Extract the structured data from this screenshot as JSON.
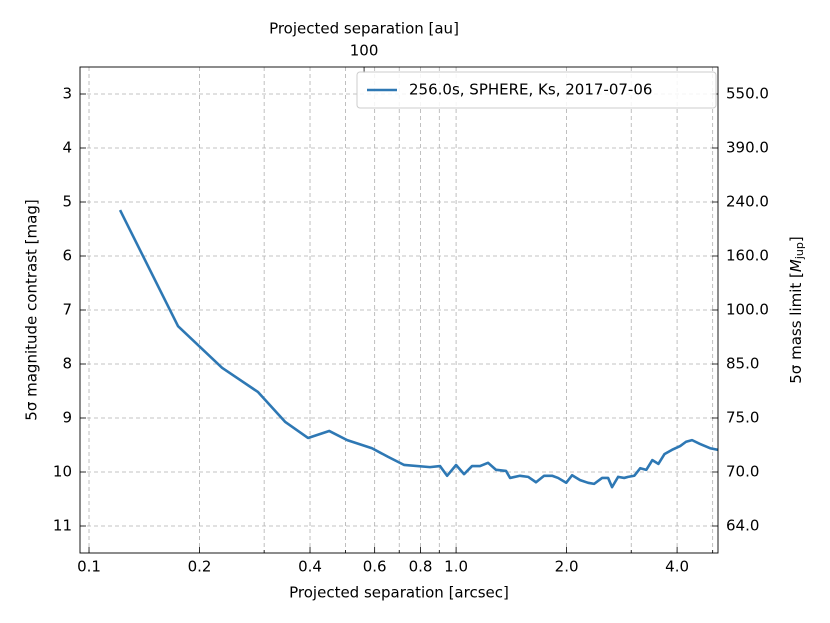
{
  "chart_data": {
    "type": "line",
    "xlabel": "Projected separation [arcsec]",
    "ylabel": "5σ magnitude contrast [mag]",
    "x2label": "Projected separation [au]",
    "y2label": {
      "prefix": "5σ mass limit [",
      "symbol": "M",
      "subscript": "jup",
      "suffix": "]"
    },
    "xscale": "log",
    "xlim": [
      0.0945,
      5.17
    ],
    "xticks": [
      0.1,
      0.2,
      0.4,
      0.6,
      0.8,
      {
        "value": 1,
        "label": "1.0"
      },
      {
        "value": 2,
        "label": "2.0"
      },
      {
        "value": 4,
        "label": "4.0"
      }
    ],
    "xgrid_minor": [
      0.3,
      0.5,
      0.7,
      0.9,
      3,
      5
    ],
    "x2lim": [
      16.83,
      920.8
    ],
    "x2ticks": [
      100
    ],
    "ylim": [
      11.5,
      2.5
    ],
    "yticks": [
      3,
      4,
      5,
      6,
      7,
      8,
      9,
      10,
      11
    ],
    "y2ticks": [
      {
        "value": 550,
        "label": "550.0"
      },
      {
        "value": 390,
        "label": "390.0"
      },
      {
        "value": 240,
        "label": "240.0"
      },
      {
        "value": 160,
        "label": "160.0"
      },
      {
        "value": 100,
        "label": "100.0"
      },
      {
        "value": 85,
        "label": "85.0"
      },
      {
        "value": 75,
        "label": "75.0"
      },
      {
        "value": 70,
        "label": "70.0"
      },
      {
        "value": 64,
        "label": "64.0"
      }
    ],
    "grid": true,
    "legend": "upper right",
    "series": [
      {
        "name": "256.0s, SPHERE, Ks, 2017-07-06",
        "color": "#2e78b4",
        "x": [
          0.1215,
          0.1748,
          0.2304,
          0.2888,
          0.342,
          0.395,
          0.451,
          0.505,
          0.59,
          0.653,
          0.722,
          0.849,
          0.904,
          0.945,
          1.0,
          1.051,
          1.105,
          1.162,
          1.222,
          1.285,
          1.368,
          1.403,
          1.493,
          1.571,
          1.651,
          1.737,
          1.826,
          1.896,
          1.995,
          2.07,
          2.177,
          2.289,
          2.377,
          2.499,
          2.595,
          2.66,
          2.763,
          2.87,
          2.941,
          3.057,
          3.175,
          3.298,
          3.425,
          3.557,
          3.694,
          3.874,
          4.078,
          4.231,
          4.394,
          4.616,
          4.92,
          5.17
        ],
        "values": [
          5.15,
          7.3,
          8.07,
          8.52,
          9.07,
          9.37,
          9.24,
          9.41,
          9.56,
          9.72,
          9.87,
          9.91,
          9.89,
          10.07,
          9.87,
          10.04,
          9.89,
          9.89,
          9.83,
          9.96,
          9.98,
          10.11,
          10.07,
          10.09,
          10.19,
          10.07,
          10.07,
          10.11,
          10.2,
          10.06,
          10.15,
          10.2,
          10.22,
          10.11,
          10.11,
          10.28,
          10.09,
          10.11,
          10.09,
          10.07,
          9.93,
          9.96,
          9.78,
          9.85,
          9.67,
          9.59,
          9.52,
          9.44,
          9.41,
          9.48,
          9.56,
          9.59
        ]
      }
    ]
  }
}
